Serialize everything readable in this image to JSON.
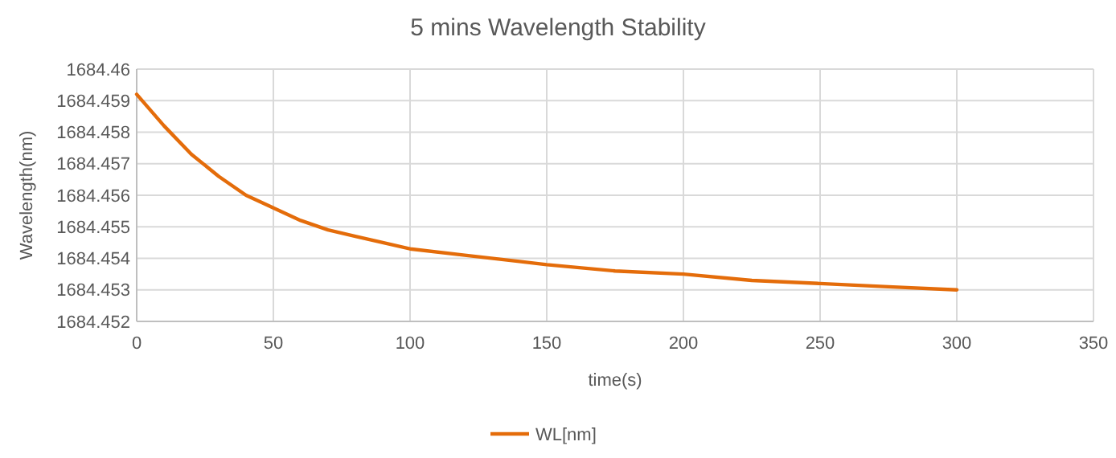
{
  "chart_data": {
    "type": "line",
    "title": "5 mins Wavelength Stability",
    "xlabel": "time(s)",
    "ylabel": "Wavelength(nm)",
    "xlim": [
      0,
      350
    ],
    "xticks": [
      0,
      50,
      100,
      150,
      200,
      250,
      300,
      350
    ],
    "ylim": [
      1684.452,
      1684.46
    ],
    "yticks": [
      1684.452,
      1684.453,
      1684.454,
      1684.455,
      1684.456,
      1684.457,
      1684.458,
      1684.459,
      1684.46
    ],
    "grid": true,
    "legend": "bottom",
    "marker": "none",
    "line_style": "solid",
    "series": [
      {
        "name": "WL[nm]",
        "color": "#e46c0a",
        "x": [
          0,
          10,
          20,
          30,
          40,
          50,
          60,
          70,
          80,
          90,
          100,
          120,
          140,
          150,
          175,
          200,
          225,
          250,
          275,
          300
        ],
        "values": [
          1684.4592,
          1684.4582,
          1684.4573,
          1684.4566,
          1684.456,
          1684.4556,
          1684.4552,
          1684.4549,
          1684.4547,
          1684.4545,
          1684.4543,
          1684.4541,
          1684.4539,
          1684.4538,
          1684.4536,
          1684.4535,
          1684.4533,
          1684.4532,
          1684.4531,
          1684.453
        ]
      }
    ]
  }
}
